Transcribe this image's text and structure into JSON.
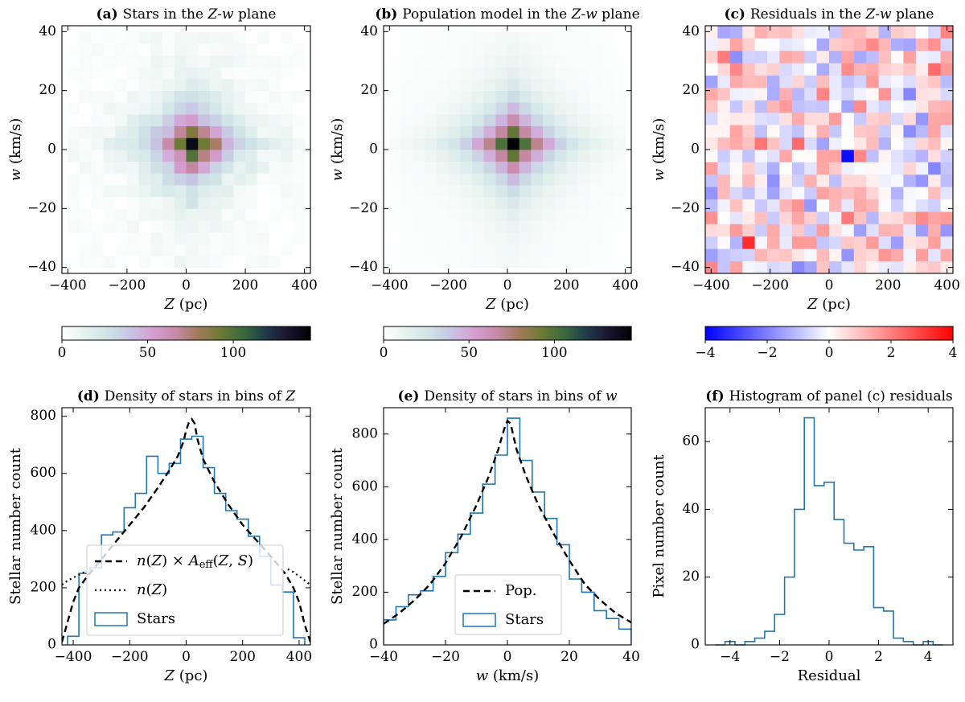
{
  "figure": "Six-panel figure: Z-w plane star counts, population model, residuals, and 1D densities",
  "colors": {
    "star_hist": "#1f77b4",
    "model_line": "#000000",
    "cubehelix_stops": [
      "#ffffff",
      "#e6f2ef",
      "#cfe3e6",
      "#c7c6e4",
      "#d59fd2",
      "#c98aa8",
      "#a27b5b",
      "#6f7a35",
      "#3a6b3e",
      "#1f3b4a",
      "#1a1530",
      "#000000"
    ],
    "bwr_stops": [
      "#0000ff",
      "#ffffff",
      "#ff0000"
    ]
  },
  "chart_data": [
    {
      "id": "a",
      "type": "heatmap",
      "title": "Stars in the Z-w plane",
      "title_prefix": "(a)",
      "xlabel_var": "Z",
      "xlabel_unit": "(pc)",
      "ylabel_var": "w",
      "ylabel_unit": "(km/s)",
      "xlim": [
        -420,
        420
      ],
      "ylim": [
        -42,
        42
      ],
      "xticks": [
        -400,
        -200,
        0,
        200,
        400
      ],
      "xtick_labels": [
        "−400",
        "−200",
        "0",
        "200",
        "400"
      ],
      "yticks": [
        -40,
        -20,
        0,
        20,
        40
      ],
      "ytick_labels": [
        "−40",
        "−20",
        "0",
        "20",
        "40"
      ],
      "grid": {
        "x_edges": [
          -400,
          400
        ],
        "y_edges": [
          -40,
          40
        ],
        "nx": 20,
        "ny": 20
      },
      "cells_note": "approx counts, 20x20 bins, noisy observed star counts peaking ~145 near (Z=20 pc, w=2 km/s)",
      "colorbar": {
        "cmap": "cubehelix_r",
        "vmin": 0,
        "vmax": 145,
        "ticks": [
          0,
          50,
          100
        ],
        "tick_labels": [
          "0",
          "50",
          "100"
        ]
      }
    },
    {
      "id": "b",
      "type": "heatmap",
      "title": "Population model in the Z-w plane",
      "title_prefix": "(b)",
      "xlabel_var": "Z",
      "xlabel_unit": "(pc)",
      "ylabel_var": "w",
      "ylabel_unit": "(km/s)",
      "xlim": [
        -420,
        420
      ],
      "ylim": [
        -42,
        42
      ],
      "xticks": [
        -400,
        -200,
        0,
        200,
        400
      ],
      "xtick_labels": [
        "−400",
        "−200",
        "0",
        "200",
        "400"
      ],
      "yticks": [
        -40,
        -20,
        0,
        20,
        40
      ],
      "ytick_labels": [
        "−40",
        "−20",
        "0",
        "20",
        "40"
      ],
      "grid": {
        "x_edges": [
          -400,
          400
        ],
        "y_edges": [
          -40,
          40
        ],
        "nx": 20,
        "ny": 20
      },
      "colorbar": {
        "cmap": "cubehelix_r",
        "vmin": 0,
        "vmax": 145,
        "ticks": [
          0,
          50,
          100
        ],
        "tick_labels": [
          "0",
          "50",
          "100"
        ]
      }
    },
    {
      "id": "c",
      "type": "heatmap",
      "title": "Residuals in the Z-w plane",
      "title_prefix": "(c)",
      "xlabel_var": "Z",
      "xlabel_unit": "(pc)",
      "ylabel_var": "w",
      "ylabel_unit": "(km/s)",
      "xlim": [
        -420,
        420
      ],
      "ylim": [
        -42,
        42
      ],
      "xticks": [
        -400,
        -200,
        0,
        200,
        400
      ],
      "xtick_labels": [
        "−400",
        "−200",
        "0",
        "200",
        "400"
      ],
      "yticks": [
        -40,
        -20,
        0,
        20,
        40
      ],
      "ytick_labels": [
        "−40",
        "−20",
        "0",
        "20",
        "40"
      ],
      "grid": {
        "x_edges": [
          -420,
          420
        ],
        "y_edges": [
          -42,
          42
        ],
        "nx": 20,
        "ny": 20
      },
      "colorbar": {
        "cmap": "bwr",
        "vmin": -4,
        "vmax": 4,
        "ticks": [
          -4,
          -2,
          0,
          2,
          4
        ],
        "tick_labels": [
          "−4",
          "−2",
          "0",
          "2",
          "4"
        ]
      }
    },
    {
      "id": "d",
      "type": "line",
      "title": "Density of stars in bins of",
      "title_prefix": "(d)",
      "title_var": "Z",
      "xlabel_var": "Z",
      "xlabel_unit": "(pc)",
      "ylabel": "Stellar number count",
      "xlim": [
        -440,
        440
      ],
      "ylim": [
        0,
        830
      ],
      "xticks": [
        -400,
        -200,
        0,
        200,
        400
      ],
      "xtick_labels": [
        "−400",
        "−200",
        "0",
        "200",
        "400"
      ],
      "yticks": [
        0,
        200,
        400,
        600,
        800
      ],
      "ytick_labels": [
        "0",
        "200",
        "400",
        "600",
        "800"
      ],
      "stars_edges": [
        -420,
        -380,
        -340,
        -300,
        -260,
        -220,
        -180,
        -140,
        -100,
        -60,
        -20,
        20,
        60,
        100,
        140,
        180,
        220,
        260,
        300,
        340,
        380,
        420
      ],
      "stars_counts": [
        30,
        250,
        270,
        385,
        395,
        480,
        530,
        660,
        600,
        635,
        720,
        730,
        620,
        530,
        470,
        440,
        380,
        310,
        210,
        185,
        25
      ],
      "model_x": [
        -440,
        -420,
        -400,
        -380,
        -350,
        -300,
        -250,
        -200,
        -150,
        -100,
        -60,
        -30,
        -10,
        0,
        10,
        20,
        30,
        40,
        60,
        100,
        150,
        200,
        250,
        300,
        350,
        380,
        400,
        420,
        440
      ],
      "model_y": [
        10,
        80,
        150,
        200,
        240,
        300,
        360,
        420,
        480,
        550,
        610,
        660,
        710,
        750,
        780,
        790,
        775,
        720,
        650,
        570,
        490,
        420,
        365,
        310,
        250,
        200,
        150,
        70,
        10
      ],
      "model_dotted_x": [
        -440,
        -420,
        -400,
        -380,
        -360
      ],
      "model_dotted_y": [
        210,
        225,
        235,
        245,
        255
      ],
      "model_dotted_x2": [
        360,
        380,
        400,
        420,
        440
      ],
      "model_dotted_y2": [
        265,
        255,
        240,
        225,
        210
      ],
      "legend": {
        "placement": "lower-left",
        "entries": [
          {
            "style": "dashed",
            "label_pre": "n(Z) × A",
            "label_sub": "eff",
            "label_post": "(Z, S)"
          },
          {
            "style": "dotted",
            "label": "n(Z)"
          },
          {
            "style": "step",
            "label": "Stars"
          }
        ]
      }
    },
    {
      "id": "e",
      "type": "line",
      "title": "Density of stars in bins of",
      "title_prefix": "(e)",
      "title_var": "w",
      "xlabel_var": "w",
      "xlabel_unit": "(km/s)",
      "ylabel": "Stellar number count",
      "xlim": [
        -40,
        40
      ],
      "ylim": [
        0,
        900
      ],
      "xticks": [
        -40,
        -20,
        0,
        20,
        40
      ],
      "xtick_labels": [
        "−40",
        "−20",
        "0",
        "20",
        "40"
      ],
      "yticks": [
        0,
        200,
        400,
        600,
        800
      ],
      "ytick_labels": [
        "0",
        "200",
        "400",
        "600",
        "800"
      ],
      "stars_edges": [
        -40,
        -36,
        -32,
        -28,
        -24,
        -20,
        -16,
        -12,
        -8,
        -4,
        0,
        4,
        8,
        12,
        16,
        20,
        24,
        28,
        32,
        36,
        40
      ],
      "stars_counts": [
        95,
        145,
        190,
        205,
        260,
        350,
        420,
        500,
        610,
        720,
        860,
        700,
        580,
        480,
        380,
        250,
        200,
        130,
        100,
        60
      ],
      "model_x": [
        -40,
        -35,
        -30,
        -25,
        -20,
        -15,
        -10,
        -6,
        -3,
        -1,
        0,
        1,
        3,
        6,
        10,
        15,
        20,
        25,
        30,
        35,
        40
      ],
      "model_y": [
        80,
        120,
        170,
        230,
        310,
        410,
        530,
        640,
        740,
        820,
        850,
        840,
        740,
        640,
        530,
        420,
        320,
        230,
        170,
        120,
        85
      ],
      "legend": {
        "placement": "lower-center",
        "entries": [
          {
            "style": "dashed",
            "label": "Pop."
          },
          {
            "style": "step",
            "label": "Stars"
          }
        ]
      }
    },
    {
      "id": "f",
      "type": "bar",
      "title": "Histogram of panel (c) residuals",
      "title_prefix": "(f)",
      "xlabel": "Residual",
      "ylabel": "Pixel number count",
      "xlim": [
        -5,
        5
      ],
      "ylim": [
        0,
        70
      ],
      "xticks": [
        -4,
        -2,
        0,
        2,
        4
      ],
      "xtick_labels": [
        "−4",
        "−2",
        "0",
        "2",
        "4"
      ],
      "yticks": [
        0,
        20,
        40,
        60
      ],
      "ytick_labels": [
        "0",
        "20",
        "40",
        "60"
      ],
      "edges": [
        -4.6,
        -4.2,
        -3.8,
        -3.4,
        -3.0,
        -2.6,
        -2.2,
        -1.8,
        -1.4,
        -1.0,
        -0.6,
        -0.2,
        0.2,
        0.6,
        1.0,
        1.4,
        1.8,
        2.2,
        2.6,
        3.0,
        3.4,
        3.8,
        4.2,
        4.6
      ],
      "counts": [
        0,
        1,
        0,
        1,
        2,
        4,
        9,
        20,
        40,
        67,
        47,
        48,
        37,
        30,
        28,
        29,
        11,
        10,
        2,
        1,
        0,
        1,
        0
      ]
    }
  ]
}
